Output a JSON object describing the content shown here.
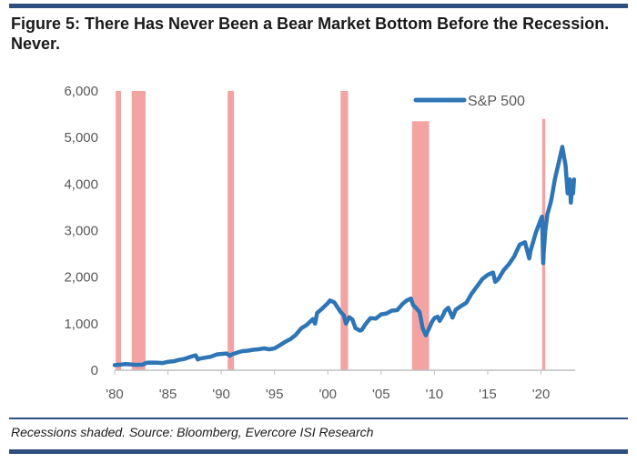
{
  "header": {
    "title": "Figure 5: There Has Never Been a Bear Market Bottom Before the Recession. Never."
  },
  "footer": {
    "source": "Recessions shaded. Source: Bloomberg, Evercore ISI Research"
  },
  "chart_data": {
    "type": "line",
    "title": "Figure 5: There Has Never Been a Bear Market Bottom Before the Recession. Never.",
    "xlabel": "",
    "ylabel": "",
    "xlim": [
      1980,
      2023.2
    ],
    "ylim": [
      0,
      6000
    ],
    "x_ticks": [
      1980,
      1985,
      1990,
      1995,
      2000,
      2005,
      2010,
      2015,
      2020
    ],
    "x_tick_labels": [
      "'80",
      "'85",
      "'90",
      "'95",
      "'00",
      "'05",
      "'10",
      "'15",
      "'20"
    ],
    "y_ticks": [
      0,
      1000,
      2000,
      3000,
      4000,
      5000,
      6000
    ],
    "y_tick_labels": [
      "0",
      "1,000",
      "2,000",
      "3,000",
      "4,000",
      "5,000",
      "6,000"
    ],
    "grid": false,
    "legend": {
      "position": "top-right"
    },
    "colors": {
      "line": "#2e75b6",
      "recession": "#f4a3a3",
      "axis": "#bfbfbf"
    },
    "recessions": [
      {
        "start": 1980.1,
        "end": 1980.6,
        "top": 6000
      },
      {
        "start": 1981.6,
        "end": 1982.9,
        "top": 6000
      },
      {
        "start": 1990.6,
        "end": 1991.2,
        "top": 6000
      },
      {
        "start": 2001.2,
        "end": 2001.9,
        "top": 6000
      },
      {
        "start": 2007.9,
        "end": 2009.5,
        "top": 5350
      },
      {
        "start": 2020.1,
        "end": 2020.4,
        "top": 5400
      }
    ],
    "series": [
      {
        "name": "S&P 500",
        "x": [
          1980.0,
          1980.5,
          1981.0,
          1981.5,
          1982.0,
          1982.6,
          1983.0,
          1983.5,
          1984.0,
          1984.5,
          1985.0,
          1985.5,
          1986.0,
          1986.5,
          1987.0,
          1987.6,
          1987.8,
          1988.0,
          1988.5,
          1989.0,
          1989.6,
          1990.0,
          1990.5,
          1990.8,
          1991.0,
          1991.5,
          1992.0,
          1992.5,
          1993.0,
          1993.5,
          1994.0,
          1994.5,
          1995.0,
          1995.5,
          1996.0,
          1996.5,
          1997.0,
          1997.5,
          1998.0,
          1998.6,
          1998.8,
          1999.0,
          1999.5,
          2000.0,
          2000.2,
          2000.6,
          2001.0,
          2001.2,
          2001.5,
          2001.7,
          2002.0,
          2002.3,
          2002.6,
          2002.8,
          2003.0,
          2003.2,
          2003.5,
          2004.0,
          2004.5,
          2005.0,
          2005.5,
          2006.0,
          2006.5,
          2007.0,
          2007.4,
          2007.8,
          2008.0,
          2008.3,
          2008.6,
          2008.9,
          2009.2,
          2009.5,
          2009.8,
          2010.0,
          2010.3,
          2010.5,
          2010.8,
          2011.0,
          2011.3,
          2011.7,
          2012.0,
          2012.5,
          2013.0,
          2013.5,
          2014.0,
          2014.5,
          2015.0,
          2015.5,
          2015.7,
          2016.0,
          2016.5,
          2017.0,
          2017.5,
          2018.0,
          2018.5,
          2018.9,
          2019.0,
          2019.5,
          2020.0,
          2020.1,
          2020.2,
          2020.25,
          2020.4,
          2020.6,
          2020.9,
          2021.0,
          2021.3,
          2021.6,
          2021.9,
          2022.0,
          2022.3,
          2022.5,
          2022.7,
          2022.8,
          2022.9,
          2023.0,
          2023.1
        ],
        "values": [
          110,
          120,
          130,
          125,
          115,
          120,
          160,
          165,
          160,
          155,
          180,
          190,
          220,
          240,
          280,
          320,
          230,
          250,
          270,
          290,
          340,
          350,
          360,
          310,
          340,
          380,
          410,
          420,
          440,
          450,
          470,
          450,
          470,
          540,
          610,
          670,
          760,
          900,
          970,
          1100,
          1000,
          1230,
          1330,
          1440,
          1500,
          1460,
          1320,
          1250,
          1180,
          1000,
          1140,
          1090,
          900,
          880,
          850,
          870,
          980,
          1120,
          1110,
          1200,
          1220,
          1280,
          1290,
          1420,
          1500,
          1540,
          1400,
          1330,
          1250,
          900,
          750,
          900,
          1050,
          1120,
          1150,
          1060,
          1180,
          1280,
          1340,
          1130,
          1300,
          1380,
          1450,
          1650,
          1800,
          1960,
          2050,
          2100,
          1900,
          1960,
          2150,
          2280,
          2450,
          2700,
          2750,
          2400,
          2550,
          2950,
          3250,
          3300,
          2300,
          2500,
          3000,
          3350,
          3600,
          3700,
          4100,
          4400,
          4700,
          4800,
          4400,
          3800,
          4100,
          3600,
          3900,
          3800,
          4100
        ]
      }
    ]
  }
}
